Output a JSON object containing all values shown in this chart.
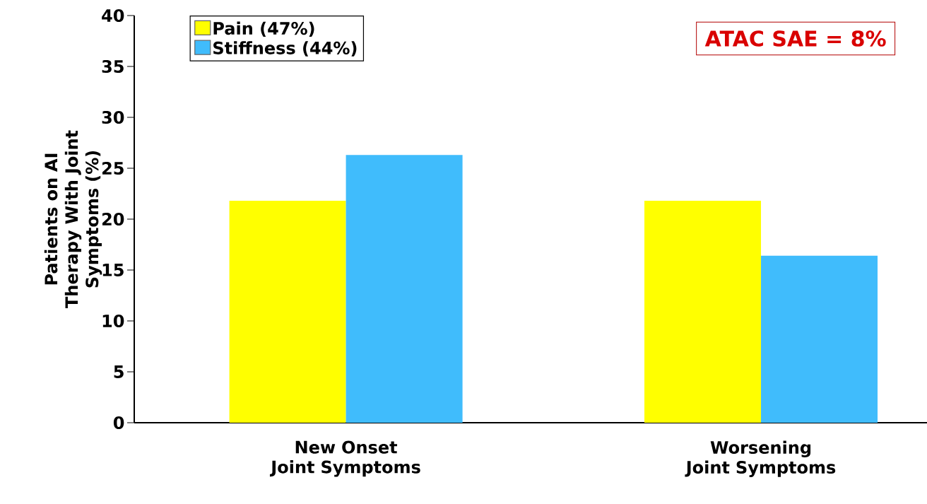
{
  "chart_data": {
    "type": "bar",
    "ylabel": "Patients on AI Therapy With Joint Symptoms (%)",
    "categories": [
      "New Onset Joint Symptoms",
      "Worsening Joint Symptoms"
    ],
    "series": [
      {
        "name": "Pain (47%)",
        "color": "#ffff00",
        "values": [
          21.8,
          21.8
        ]
      },
      {
        "name": "Stiffness (44%)",
        "color": "#40bcfc",
        "values": [
          26.3,
          16.4
        ]
      }
    ],
    "ylim": [
      0,
      40
    ],
    "yticks": [
      0,
      5,
      10,
      15,
      20,
      25,
      30,
      35,
      40
    ],
    "legend": "top left",
    "grid": false,
    "annotations": [
      "ATAC SAE = 8%"
    ]
  }
}
